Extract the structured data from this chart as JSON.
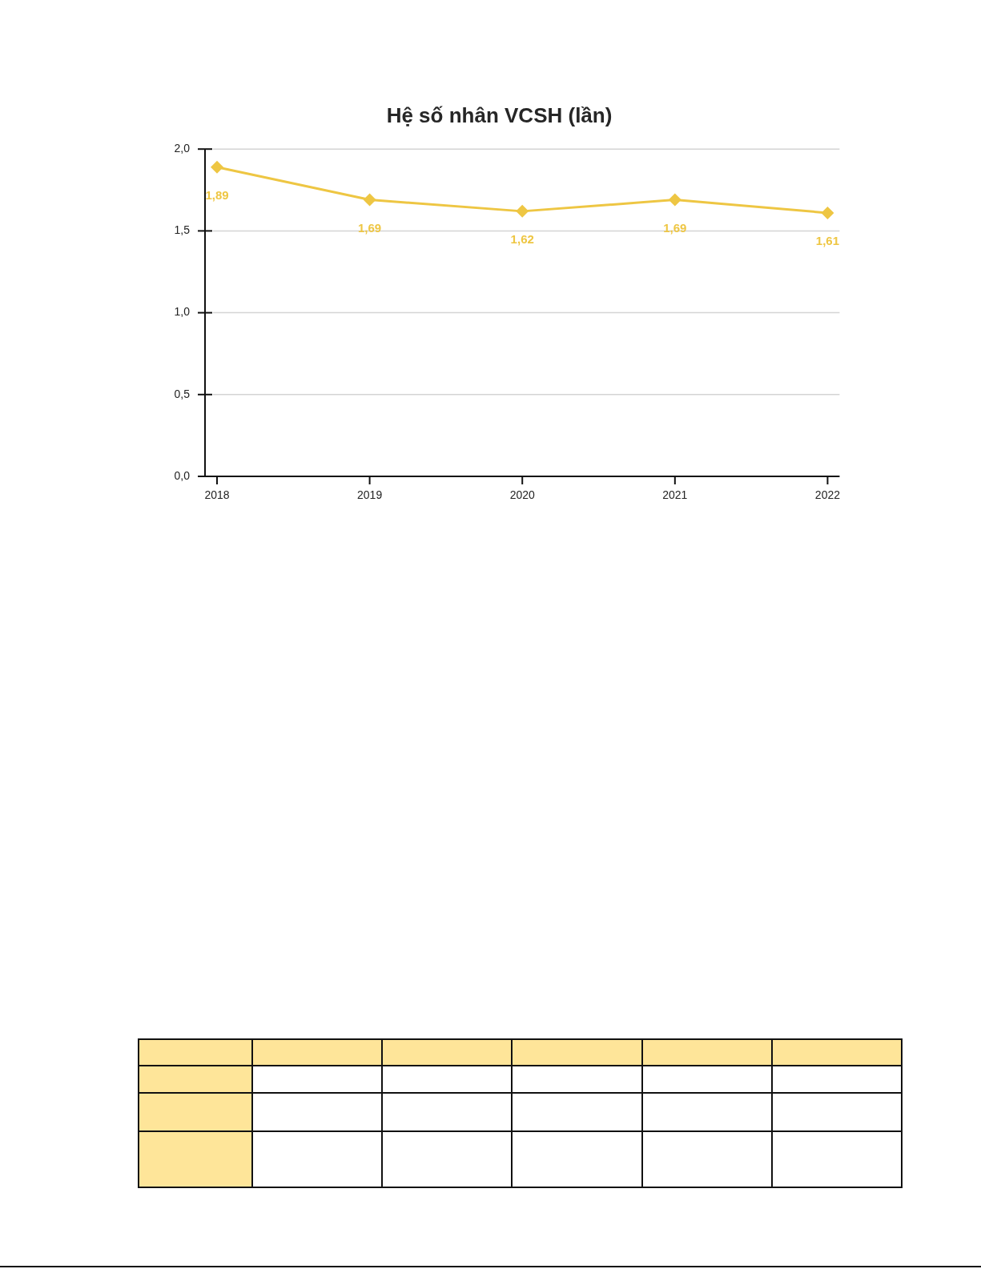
{
  "chart_data": {
    "type": "line",
    "title": "Hệ số nhân VCSH (lần)",
    "categories": [
      "2018",
      "2019",
      "2020",
      "2021",
      "2022"
    ],
    "series": [
      {
        "color": "#eec643",
        "values": [
          1.89,
          1.69,
          1.62,
          1.69,
          1.61
        ],
        "value_labels": [
          "1,89",
          "1,69",
          "1,62",
          "1,69",
          "1,61"
        ]
      }
    ],
    "ylim": [
      0,
      2
    ],
    "yticks": [
      {
        "value": 0,
        "label": "0,0"
      },
      {
        "value": 0.5,
        "label": "0,5"
      },
      {
        "value": 1,
        "label": "1,0"
      },
      {
        "value": 1.5,
        "label": "1,5"
      },
      {
        "value": 2,
        "label": "2,0"
      }
    ],
    "grid": "y",
    "marker": "diamond",
    "line_style": "solid"
  }
}
